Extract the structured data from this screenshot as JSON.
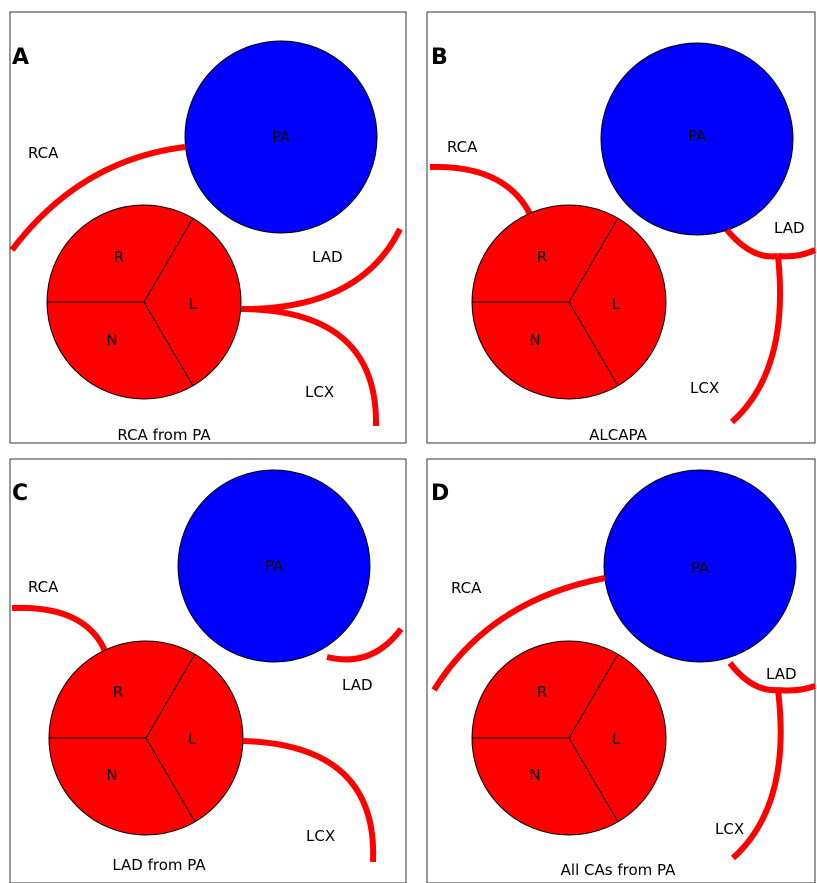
{
  "colors": {
    "pulmonary_artery": "#0000ff",
    "aorta": "#ff0000",
    "coronary_vessel": "#ff0000",
    "frame": "#333333"
  },
  "panels": [
    {
      "letter": "A",
      "caption": "RCA from PA",
      "labels": {
        "pa": "PA",
        "r": "R",
        "l": "L",
        "n": "N",
        "rca": "RCA",
        "lad": "LAD",
        "lcx": "LCX"
      }
    },
    {
      "letter": "B",
      "caption": "ALCAPA",
      "labels": {
        "pa": "PA",
        "r": "R",
        "l": "L",
        "n": "N",
        "rca": "RCA",
        "lad": "LAD",
        "lcx": "LCX"
      }
    },
    {
      "letter": "C",
      "caption": "LAD from PA",
      "labels": {
        "pa": "PA",
        "r": "R",
        "l": "L",
        "n": "N",
        "rca": "RCA",
        "lad": "LAD",
        "lcx": "LCX"
      }
    },
    {
      "letter": "D",
      "caption": "All CAs from PA",
      "labels": {
        "pa": "PA",
        "r": "R",
        "l": "L",
        "n": "N",
        "rca": "RCA",
        "lad": "LAD",
        "lcx": "LCX"
      }
    }
  ]
}
